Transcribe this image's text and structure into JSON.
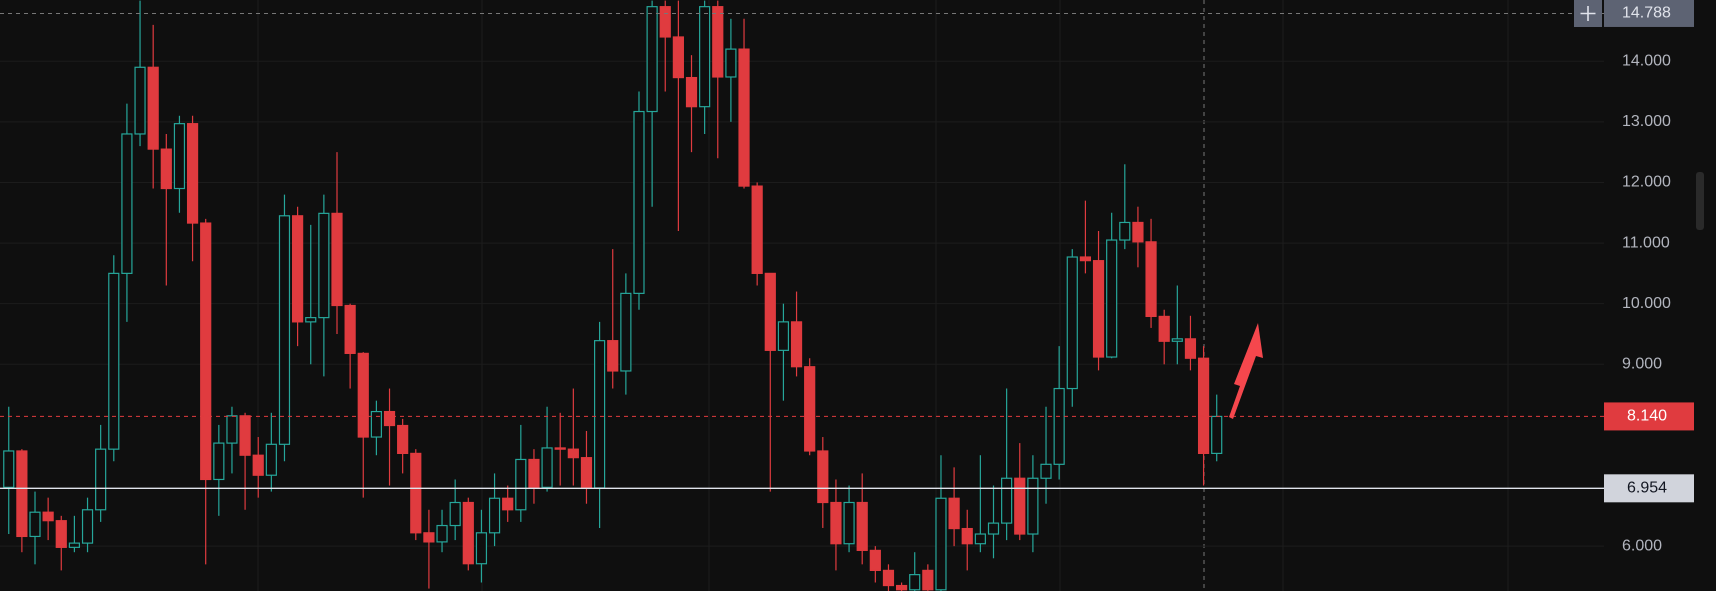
{
  "chart_data": {
    "type": "candlestick",
    "up_color": "#26a69a",
    "down_color": "#e03b3f",
    "ylim": [
      5.26,
      15.01
    ],
    "yticks": [
      {
        "value": 6,
        "label": "6.000"
      },
      {
        "value": 9,
        "label": "9.000"
      },
      {
        "value": 10,
        "label": "10.000"
      },
      {
        "value": 11,
        "label": "11.000"
      },
      {
        "value": 12,
        "label": "12.000"
      },
      {
        "value": 13,
        "label": "13.000"
      },
      {
        "value": 14,
        "label": "14.000"
      }
    ],
    "grid": true,
    "crosshair_price": 14.788,
    "last_price": {
      "value": 8.14,
      "label": "8.140"
    },
    "hline_price": 6.954,
    "open": [
      6.97,
      7.57,
      6.16,
      6.56,
      6.42,
      5.98,
      6.05,
      6.6,
      7.6,
      10.5,
      12.8,
      13.9,
      12.55,
      11.9,
      12.97,
      11.33,
      7.1,
      7.7,
      8.15,
      7.5,
      7.17,
      7.68,
      11.45,
      9.7,
      9.77,
      11.49,
      9.97,
      9.18,
      7.8,
      8.22,
      7.99,
      7.53,
      6.22,
      6.07,
      6.34,
      6.72,
      5.71,
      6.22,
      6.79,
      6.6,
      7.43,
      6.97,
      7.62,
      7.6,
      7.46,
      6.96,
      9.39,
      8.89,
      10.17,
      13.17,
      14.9,
      14.4,
      13.73,
      13.25,
      14.9,
      13.74,
      14.2,
      11.94,
      10.5,
      9.23,
      9.7,
      8.96,
      7.57,
      6.72,
      6.04,
      6.72,
      5.93,
      5.6,
      5.35,
      5.28,
      5.6,
      5.28,
      6.79,
      6.29,
      6.04,
      6.2,
      6.38,
      7.12,
      6.2,
      7.12,
      7.35,
      8.6,
      10.77,
      10.71,
      9.12,
      11.05,
      11.34,
      11.02,
      9.79,
      9.38,
      9.42,
      9.1,
      7.53
    ],
    "high": [
      8.3,
      7.6,
      6.9,
      6.8,
      6.5,
      6.5,
      6.8,
      8.0,
      10.8,
      13.3,
      15.0,
      14.6,
      12.8,
      13.1,
      13.1,
      11.4,
      8.0,
      8.3,
      8.2,
      7.8,
      8.2,
      11.8,
      11.6,
      11.3,
      11.8,
      12.5,
      10.0,
      9.2,
      8.4,
      8.6,
      8.1,
      7.6,
      6.6,
      6.6,
      7.1,
      6.8,
      6.6,
      7.2,
      7.0,
      8.0,
      7.6,
      8.3,
      8.2,
      8.6,
      7.9,
      9.7,
      10.9,
      10.5,
      13.5,
      15.0,
      15.0,
      15.0,
      14.1,
      15.0,
      15.0,
      14.7,
      14.7,
      12.0,
      10.5,
      10.0,
      10.2,
      9.1,
      7.8,
      7.1,
      7.0,
      7.2,
      6.0,
      5.7,
      5.4,
      5.9,
      5.7,
      7.5,
      7.3,
      6.6,
      7.5,
      7.0,
      8.6,
      7.7,
      7.5,
      8.3,
      9.3,
      10.9,
      11.7,
      11.2,
      11.5,
      12.3,
      11.6,
      11.4,
      9.9,
      10.3,
      9.8,
      9.3,
      8.5
    ],
    "low": [
      6.2,
      5.9,
      5.7,
      6.1,
      5.6,
      5.9,
      5.9,
      6.4,
      7.4,
      9.7,
      12.6,
      11.9,
      10.3,
      11.5,
      10.7,
      5.7,
      6.5,
      7.2,
      6.6,
      6.8,
      6.9,
      7.4,
      9.3,
      9.0,
      8.8,
      9.5,
      8.6,
      6.8,
      7.5,
      7.0,
      7.2,
      6.1,
      5.3,
      5.9,
      6.1,
      5.6,
      5.4,
      6.0,
      6.4,
      6.4,
      6.7,
      6.9,
      7.0,
      7.0,
      6.7,
      6.3,
      8.6,
      8.5,
      9.9,
      11.6,
      13.5,
      11.2,
      12.5,
      12.8,
      12.4,
      13.0,
      11.9,
      10.3,
      6.9,
      8.4,
      8.8,
      7.5,
      6.3,
      5.6,
      5.9,
      5.7,
      5.4,
      5.26,
      5.26,
      5.26,
      5.26,
      5.26,
      6.0,
      5.6,
      5.9,
      5.8,
      6.1,
      6.1,
      5.9,
      6.7,
      7.1,
      8.3,
      10.5,
      8.9,
      9.1,
      10.9,
      10.6,
      9.6,
      9.0,
      9.0,
      8.9,
      7.0,
      7.4
    ],
    "close": [
      7.57,
      6.16,
      6.56,
      6.42,
      5.98,
      6.05,
      6.6,
      7.6,
      10.5,
      12.8,
      13.9,
      12.55,
      11.9,
      12.97,
      11.33,
      7.1,
      7.7,
      8.15,
      7.5,
      7.17,
      7.68,
      11.45,
      9.7,
      9.77,
      11.49,
      9.97,
      9.18,
      7.8,
      8.22,
      7.99,
      7.53,
      6.22,
      6.07,
      6.34,
      6.72,
      5.71,
      6.22,
      6.79,
      6.6,
      7.43,
      6.97,
      7.62,
      7.6,
      7.46,
      6.96,
      9.39,
      8.89,
      10.17,
      13.17,
      14.9,
      14.4,
      13.73,
      13.25,
      14.9,
      13.74,
      14.2,
      11.94,
      10.5,
      9.23,
      9.7,
      8.96,
      7.57,
      6.72,
      6.04,
      6.72,
      5.93,
      5.6,
      5.35,
      5.28,
      5.53,
      5.28,
      6.79,
      6.29,
      6.04,
      6.2,
      6.38,
      7.12,
      6.2,
      7.12,
      7.35,
      8.6,
      10.77,
      10.71,
      9.12,
      11.05,
      11.34,
      11.02,
      9.79,
      9.38,
      9.42,
      9.1,
      7.53,
      8.14
    ]
  }
}
